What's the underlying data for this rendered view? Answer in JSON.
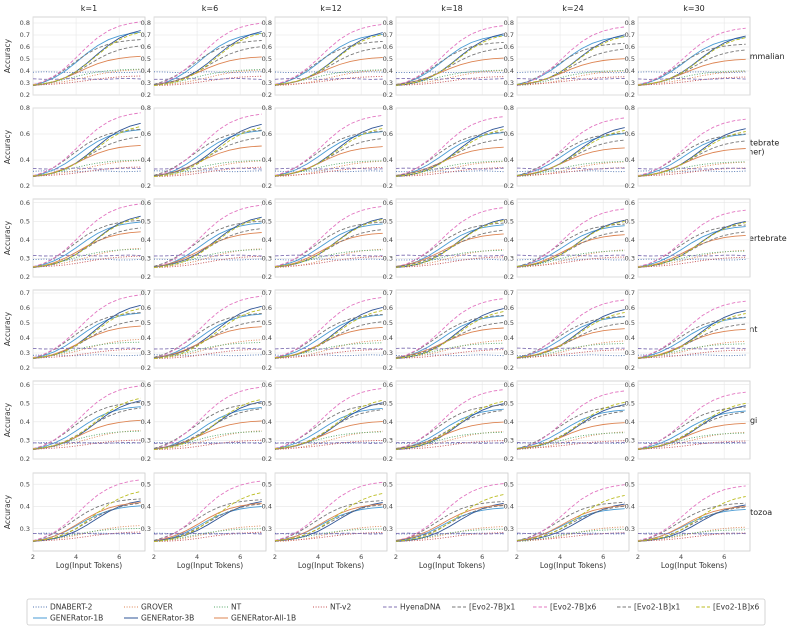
{
  "chart_data": {
    "type": "line",
    "columns": [
      "k=1",
      "k=6",
      "k=12",
      "k=18",
      "k=24",
      "k=30"
    ],
    "rows": [
      "mammalian",
      "vertebrate\n(other)",
      "invertebrate",
      "plant",
      "fungi",
      "protozoa"
    ],
    "xlabel": "Log(Input Tokens)",
    "ylabel": "Accuracy",
    "xlim": [
      2,
      7.2
    ],
    "xticks": [
      2,
      4,
      6
    ],
    "x": [
      2,
      2.5,
      3,
      3.5,
      4,
      4.5,
      5,
      5.5,
      6,
      6.5,
      7
    ],
    "ylims": [
      [
        0.2,
        0.85
      ],
      [
        0.2,
        0.8
      ],
      [
        0.2,
        0.62
      ],
      [
        0.2,
        0.72
      ],
      [
        0.2,
        0.62
      ],
      [
        0.2,
        0.55
      ]
    ],
    "yticks": [
      [
        0.2,
        0.3,
        0.4,
        0.5,
        0.6,
        0.7,
        0.8
      ],
      [
        0.2,
        0.4,
        0.6,
        0.8
      ],
      [
        0.2,
        0.3,
        0.4,
        0.5,
        0.6
      ],
      [
        0.2,
        0.3,
        0.4,
        0.5,
        0.6,
        0.7
      ],
      [
        0.2,
        0.3,
        0.4,
        0.5,
        0.6
      ],
      [
        0.3,
        0.4,
        0.5
      ]
    ],
    "series": [
      {
        "name": "DNABERT-2",
        "color": "#4c72b0",
        "dash": "dot",
        "kind": "flat",
        "profile": [
          0.2,
          0.08,
          0.12,
          0.05,
          0.1,
          0.12
        ]
      },
      {
        "name": "GENERator-1B",
        "color": "#4a9bd4",
        "dash": "solid",
        "kind": "sig",
        "profile": [
          0.82,
          0.72,
          0.7,
          0.7,
          0.66,
          0.55
        ]
      },
      {
        "name": "GROVER",
        "color": "#dd8452",
        "dash": "dot",
        "kind": "sig",
        "profile": [
          0.25,
          0.25,
          0.3,
          0.3,
          0.3,
          0.25
        ]
      },
      {
        "name": "GENERator-3B",
        "color": "#2f5597",
        "dash": "solid",
        "kind": "sig",
        "profile": [
          0.88,
          0.85,
          0.82,
          0.85,
          0.78,
          0.65
        ]
      },
      {
        "name": "NT",
        "color": "#55a868",
        "dash": "dot",
        "kind": "sig",
        "profile": [
          0.25,
          0.25,
          0.28,
          0.25,
          0.28,
          0.2
        ]
      },
      {
        "name": "GENERator-All-1B",
        "color": "#dd8452",
        "dash": "solid",
        "kind": "sig",
        "profile": [
          0.45,
          0.48,
          0.55,
          0.5,
          0.45,
          0.6
        ]
      },
      {
        "name": "NT-v2",
        "color": "#c44e52",
        "dash": "dot",
        "kind": "sig",
        "profile": [
          0.15,
          0.15,
          0.18,
          0.15,
          0.15,
          0.15
        ]
      },
      {
        "name": "HyenaDNA",
        "color": "#8172b3",
        "dash": "dash",
        "kind": "flat",
        "profile": [
          0.1,
          0.12,
          0.18,
          0.15,
          0.1,
          0.12
        ]
      },
      {
        "name": "[Evo2-7B]x1",
        "color": "#777777",
        "dash": "dash",
        "kind": "sig",
        "profile": [
          0.7,
          0.72,
          0.72,
          0.7,
          0.72,
          0.65
        ]
      },
      {
        "name": "[Evo2-7B]x6",
        "color": "#e377c2",
        "dash": "dash",
        "kind": "sig",
        "profile": [
          0.98,
          0.98,
          0.98,
          0.98,
          0.98,
          0.95
        ]
      },
      {
        "name": "[Evo2-1B]x1",
        "color": "#777777",
        "dash": "dash",
        "kind": "sig",
        "profile": [
          0.62,
          0.62,
          0.62,
          0.6,
          0.65,
          0.6
        ]
      },
      {
        "name": "[Evo2-1B]x6",
        "color": "#bcbd22",
        "dash": "dash",
        "kind": "sig",
        "profile": [
          0.85,
          0.8,
          0.8,
          0.8,
          0.82,
          0.8
        ]
      }
    ],
    "note": "Values are approximate readings of a 6x6 small-multiples grid of accuracy curves."
  }
}
